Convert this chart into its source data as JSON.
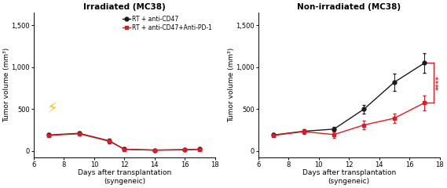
{
  "left_title": "Irradiated (MC38)",
  "right_title": "Non-irradiated (MC38)",
  "xlabel": "Days after transplantation\n(syngeneic)",
  "ylabel": "Tumor volume (mm³)",
  "left_black_x": [
    7,
    9,
    11,
    12,
    14,
    16,
    17
  ],
  "left_black_y": [
    190,
    210,
    120,
    20,
    10,
    15,
    20
  ],
  "left_black_yerr": [
    20,
    20,
    30,
    10,
    5,
    5,
    10
  ],
  "left_red_x": [
    7,
    9,
    11,
    12,
    14,
    16,
    17
  ],
  "left_red_y": [
    185,
    205,
    115,
    18,
    8,
    12,
    18
  ],
  "left_red_yerr": [
    20,
    20,
    25,
    8,
    4,
    4,
    8
  ],
  "right_black_x": [
    7,
    9,
    11,
    13,
    15,
    17
  ],
  "right_black_y": [
    190,
    235,
    260,
    500,
    820,
    1050
  ],
  "right_black_yerr": [
    20,
    25,
    30,
    50,
    100,
    120
  ],
  "right_red_x": [
    7,
    9,
    11,
    13,
    15,
    17
  ],
  "right_red_y": [
    185,
    230,
    195,
    310,
    390,
    575
  ],
  "right_red_yerr": [
    20,
    25,
    40,
    55,
    60,
    90
  ],
  "legend_label_black": "RT + anti-CD47",
  "legend_label_red": "RT + anti-CD47+Anti-PD-1",
  "black_color": "#1a1a1a",
  "red_color": "#e01a24",
  "significance_text": "****",
  "xlim": [
    6,
    18
  ],
  "ylim": [
    -80,
    1650
  ],
  "yticks": [
    0,
    500,
    1000,
    1500
  ],
  "xticks": [
    6,
    8,
    10,
    12,
    14,
    16,
    18
  ],
  "lightning_x": 7.2,
  "lightning_y": 500
}
